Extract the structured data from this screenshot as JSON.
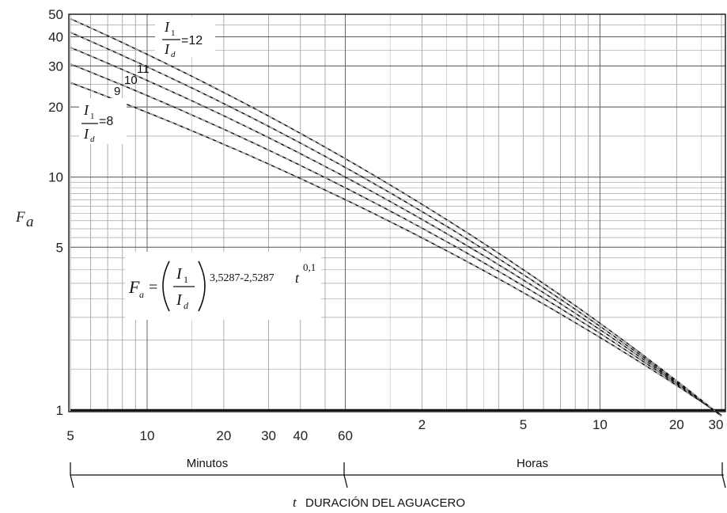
{
  "chart_data": {
    "type": "line",
    "scale": "log-log",
    "xlabel_symbol": "t",
    "xlabel": "DURACIÓN DEL AGUACERO",
    "ylabel": "F",
    "ylabel_sub": "a",
    "x_minutes_ticks": [
      "5",
      "10",
      "20",
      "30",
      "40",
      "60"
    ],
    "x_hours_ticks": [
      "2",
      "5",
      "10",
      "20",
      "30"
    ],
    "y_ticks": [
      "1",
      "5",
      "10",
      "20",
      "30",
      "40",
      "50"
    ],
    "x_range_hours": [
      0.0833,
      30
    ],
    "y_range": [
      1,
      50
    ],
    "grid": true,
    "segment_minutes": "Minutos",
    "segment_hours": "Horas",
    "formula": {
      "lhs": "F",
      "lhs_sub": "a",
      "eq": "=",
      "num": "I",
      "num_sub": "1",
      "den": "I",
      "den_sub": "d",
      "exponent": "3,5287-2,5287",
      "exp_var": "t",
      "exp_pow": "0,1"
    },
    "ratio_label_top": {
      "num": "I",
      "num_sub": "1",
      "den": "I",
      "den_sub": "d",
      "value": "=12"
    },
    "ratio_label_bottom": {
      "num": "I",
      "num_sub": "1",
      "den": "I",
      "den_sub": "d",
      "value": "=8"
    },
    "series": [
      {
        "name": "8",
        "ratio": 8
      },
      {
        "name": "9",
        "ratio": 9
      },
      {
        "name": "10",
        "ratio": 10
      },
      {
        "name": "11",
        "ratio": 11
      },
      {
        "name": "12",
        "ratio": 12
      }
    ]
  }
}
